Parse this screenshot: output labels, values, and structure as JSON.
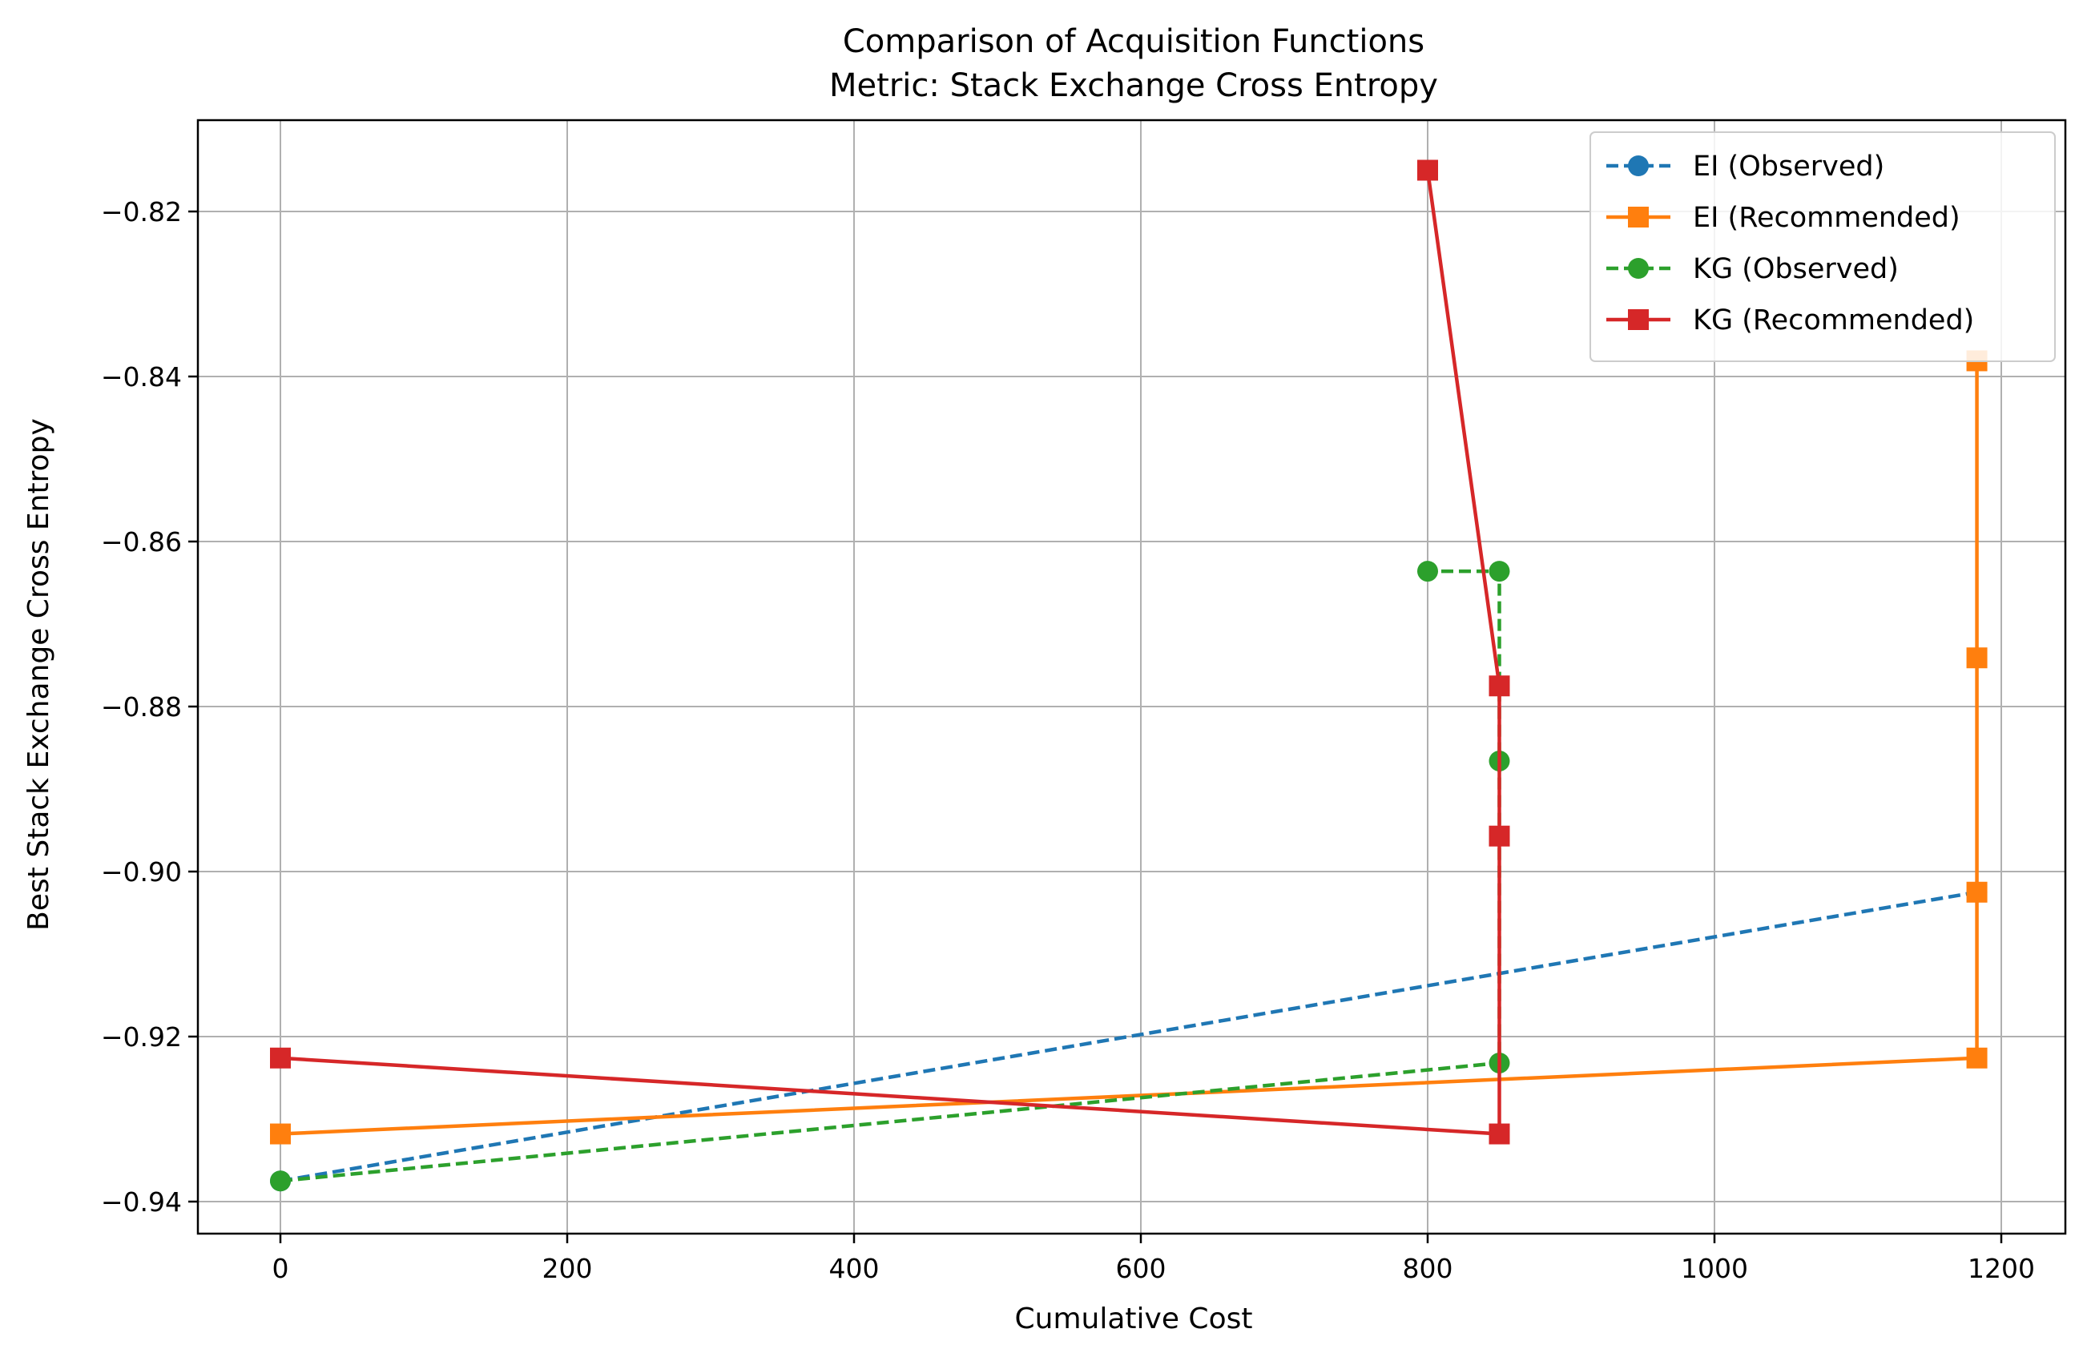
{
  "chart_data": {
    "type": "line",
    "title_line1": "Comparison of Acquisition Functions",
    "title_line2": "Metric: Stack Exchange Cross Entropy",
    "xlabel": "Cumulative Cost",
    "ylabel": "Best Stack Exchange Cross Entropy",
    "xlim": [
      -58,
      1200
    ],
    "ylim": [
      -0.9437,
      -0.8089
    ],
    "xticks": [
      0,
      200,
      400,
      600,
      800,
      1000,
      1200
    ],
    "yticks": [
      -0.94,
      -0.92,
      -0.9,
      -0.88,
      -0.86,
      -0.84,
      -0.82
    ],
    "ytick_labels": [
      "−0.94",
      "−0.92",
      "−0.90",
      "−0.88",
      "−0.86",
      "−0.84",
      "−0.82"
    ],
    "grid": true,
    "legend_position": "top-right",
    "series": [
      {
        "name": "EI (Observed)",
        "color": "#1f77b4",
        "marker": "circle",
        "linestyle": "dashed",
        "x": [
          0,
          1183
        ],
        "y": [
          -0.9375,
          -0.9025
        ]
      },
      {
        "name": "EI (Recommended)",
        "color": "#ff7f0e",
        "marker": "square",
        "linestyle": "solid",
        "x": [
          0,
          1183,
          1183,
          1183,
          1183
        ],
        "y": [
          -0.9318,
          -0.9226,
          -0.9025,
          -0.8741,
          -0.8381
        ]
      },
      {
        "name": "KG (Observed)",
        "color": "#2ca02c",
        "marker": "circle",
        "linestyle": "dashed",
        "x": [
          0,
          850,
          850,
          850,
          800
        ],
        "y": [
          -0.9375,
          -0.9232,
          -0.8866,
          -0.8636,
          -0.8636
        ]
      },
      {
        "name": "KG (Recommended)",
        "color": "#d62728",
        "marker": "square",
        "linestyle": "solid",
        "x": [
          0,
          850,
          850,
          850,
          800
        ],
        "y": [
          -0.9226,
          -0.9318,
          -0.8957,
          -0.8775,
          -0.815
        ]
      }
    ]
  }
}
